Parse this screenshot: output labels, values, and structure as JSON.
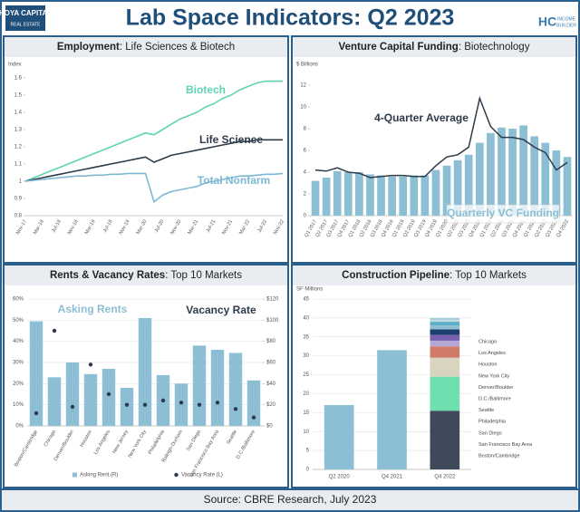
{
  "header": {
    "title": "Lab Space Indicators: Q2 2023",
    "logo_left": [
      "HOYA CAPITAL",
      "REAL ESTATE"
    ],
    "logo_right": [
      "HC",
      "INCOME",
      "BUILDER"
    ]
  },
  "footer": "Source: CBRE Research, July 2023",
  "chart_data": [
    {
      "type": "line",
      "title": [
        "Employment",
        ": Life Sciences & Biotech"
      ],
      "ylabel": "Index",
      "categories": [
        "Nov-17",
        null,
        "Mar-18",
        null,
        "Jul-18",
        null,
        "Nov-18",
        null,
        "Mar-19",
        null,
        "Jul-19",
        null,
        "Nov-19",
        null,
        "Mar-20",
        null,
        "Jul-20",
        null,
        "Nov-20",
        null,
        "Mar-21",
        null,
        "Jul-21",
        null,
        "Nov-21",
        null,
        "Mar-22",
        null,
        "Jul-22",
        null,
        "Nov-22"
      ],
      "series": [
        {
          "name": "Biotech",
          "color": "#5fd3b3",
          "values": [
            1.0,
            1.02,
            1.04,
            1.06,
            1.08,
            1.1,
            1.12,
            1.14,
            1.16,
            1.18,
            1.2,
            1.22,
            1.24,
            1.26,
            1.28,
            1.27,
            1.3,
            1.33,
            1.36,
            1.38,
            1.4,
            1.43,
            1.45,
            1.48,
            1.5,
            1.53,
            1.55,
            1.57,
            1.58,
            1.58,
            1.58
          ]
        },
        {
          "name": "Life Science",
          "color": "#2d3b4a",
          "values": [
            1.0,
            1.01,
            1.02,
            1.03,
            1.04,
            1.05,
            1.06,
            1.07,
            1.08,
            1.09,
            1.1,
            1.11,
            1.12,
            1.13,
            1.14,
            1.11,
            1.13,
            1.15,
            1.16,
            1.17,
            1.18,
            1.19,
            1.2,
            1.21,
            1.22,
            1.23,
            1.23,
            1.24,
            1.24,
            1.24,
            1.24
          ]
        },
        {
          "name": "Total Nonfarm",
          "color": "#7fb8d4",
          "values": [
            1.0,
            1.005,
            1.01,
            1.015,
            1.02,
            1.025,
            1.03,
            1.03,
            1.035,
            1.035,
            1.04,
            1.04,
            1.045,
            1.045,
            1.045,
            0.88,
            0.92,
            0.94,
            0.95,
            0.96,
            0.97,
            0.99,
            1.0,
            1.01,
            1.02,
            1.03,
            1.03,
            1.035,
            1.04,
            1.04,
            1.045
          ]
        }
      ],
      "ylim": [
        0.8,
        1.62
      ],
      "yticks": [
        0.8,
        0.9,
        1,
        1.1,
        1.2,
        1.3,
        1.4,
        1.5,
        1.6
      ],
      "grid": false
    },
    {
      "type": "combo",
      "title": [
        "Venture Capital Funding",
        ": Biotechnology"
      ],
      "ylabel": "$ Billions",
      "categories": [
        "Q1 2017",
        "Q2 2017",
        "Q3 2017",
        "Q4 2017",
        "Q1 2018",
        "Q2 2018",
        "Q3 2018",
        "Q4 2018",
        "Q1 2019",
        "Q2 2019",
        "Q3 2019",
        "Q4 2019",
        "Q1 2020",
        "Q2 2020",
        "Q3 2020",
        "Q4 2020",
        "Q1 2021",
        "Q2 2021",
        "Q3 2021",
        "Q4 2021",
        "Q1 2022",
        "Q2 2022",
        "Q3 2022",
        "Q4 2022"
      ],
      "series": [
        {
          "name": "Quarterly VC Funding",
          "type": "bar",
          "color": "#8dbfd4",
          "values": [
            3.2,
            3.5,
            4.1,
            4.0,
            4.0,
            3.8,
            3.7,
            3.6,
            3.6,
            3.7,
            3.7,
            4.2,
            4.6,
            5.1,
            5.6,
            6.7,
            7.6,
            8.1,
            8.0,
            8.3,
            7.3,
            6.7,
            6.0,
            5.4
          ]
        },
        {
          "name": "4-Quarter Average",
          "type": "line",
          "color": "#2d3b4a",
          "values": [
            4.2,
            4.1,
            4.4,
            4.0,
            3.9,
            3.5,
            3.6,
            3.7,
            3.7,
            3.6,
            3.6,
            4.6,
            5.4,
            5.6,
            6.3,
            10.8,
            8.2,
            7.2,
            7.2,
            7.0,
            6.3,
            5.8,
            4.2,
            4.9
          ]
        }
      ],
      "ylim": [
        0,
        13
      ],
      "yticks": [
        0,
        2,
        4,
        6,
        8,
        10,
        12
      ],
      "grid": false
    },
    {
      "type": "combo",
      "title": [
        "Rents & Vacancy Rates",
        ": Top 10 Markets"
      ],
      "categories": [
        "Boston/Cambridge",
        "Chicago",
        "Denver/Boulder",
        "Houston",
        "Los Angeles",
        "New Jersey",
        "New York City",
        "Philadelphia",
        "Raleigh-Durham",
        "San Diego",
        "San Francisco Bay Area",
        "Seattle",
        "D.C./Baltimore"
      ],
      "series": [
        {
          "name": "Asking Rent (R)",
          "type": "bar",
          "axis": "y2",
          "color": "#8dbfd4",
          "values": [
            99,
            46,
            60,
            49,
            54,
            36,
            102,
            48,
            40,
            76,
            72,
            69,
            43
          ]
        },
        {
          "name": "Vacancy Rate (L)",
          "type": "scatter",
          "color": "#2d3b4a",
          "values": [
            6,
            45,
            9,
            29,
            15,
            10,
            10,
            12,
            11,
            10,
            11,
            8,
            4
          ]
        }
      ],
      "annotations": [
        "Asking Rents",
        "Vacancy Rate"
      ],
      "ylim": [
        0,
        60
      ],
      "yticks": [
        {
          "value": 0,
          "label": "0%"
        },
        {
          "value": 10,
          "label": "10%"
        },
        {
          "value": 20,
          "label": "20%"
        },
        {
          "value": 30,
          "label": "30%"
        },
        {
          "value": 40,
          "label": "40%"
        },
        {
          "value": 50,
          "label": "50%"
        },
        {
          "value": 60,
          "label": "60%"
        }
      ],
      "y2lim": [
        0,
        120
      ],
      "y2ticks": [
        {
          "value": 0,
          "label": "$0"
        },
        {
          "value": 20,
          "label": "$20"
        },
        {
          "value": 40,
          "label": "$40"
        },
        {
          "value": 60,
          "label": "$60"
        },
        {
          "value": 80,
          "label": "$80"
        },
        {
          "value": 100,
          "label": "$100"
        },
        {
          "value": 120,
          "label": "$120"
        }
      ],
      "grid": true
    },
    {
      "type": "bar",
      "title": [
        "Construction Pipeline",
        ": Top 10 Markets"
      ],
      "ylabel": "SF Millions",
      "categories": [
        "Q2 2020",
        "Q4 2021",
        "Q4 2022"
      ],
      "values": [
        17,
        31.5,
        null
      ],
      "color": "#8dbfd4",
      "series": [
        {
          "name": "Boston/Cambridge",
          "color": "#3e4a5a",
          "values": [
            null,
            null,
            15.5
          ]
        },
        {
          "name": "San Francisco Bay Area",
          "color": "#6ee0b0",
          "values": [
            null,
            null,
            9
          ]
        },
        {
          "name": "San Diego",
          "color": "#d8d4c0",
          "values": [
            null,
            null,
            5
          ]
        },
        {
          "name": "Philadelphia",
          "color": "#d07a6a",
          "values": [
            null,
            null,
            3
          ]
        },
        {
          "name": "Seattle",
          "color": "#b4a7d6",
          "values": [
            null,
            null,
            1.5
          ]
        },
        {
          "name": "D.C./Baltimore",
          "color": "#7a60b0",
          "values": [
            null,
            null,
            1.5
          ]
        },
        {
          "name": "Denver/Boulder",
          "color": "#1f3f70",
          "values": [
            null,
            null,
            1.5
          ]
        },
        {
          "name": "New York City",
          "color": "#8dbfd4",
          "values": [
            null,
            null,
            1
          ]
        },
        {
          "name": "Houston",
          "color": "#5ab0c8",
          "values": [
            null,
            null,
            1
          ]
        },
        {
          "name": "Los Angeles",
          "color": "#c8d8e0",
          "values": [
            null,
            null,
            0.5
          ]
        },
        {
          "name": "Chicago",
          "color": "#a0d0e0",
          "values": [
            null,
            null,
            0.5
          ]
        }
      ],
      "ylim": [
        0,
        45
      ],
      "yticks": [
        0,
        5,
        10,
        15,
        20,
        25,
        30,
        35,
        40,
        45
      ],
      "grid": true
    }
  ]
}
